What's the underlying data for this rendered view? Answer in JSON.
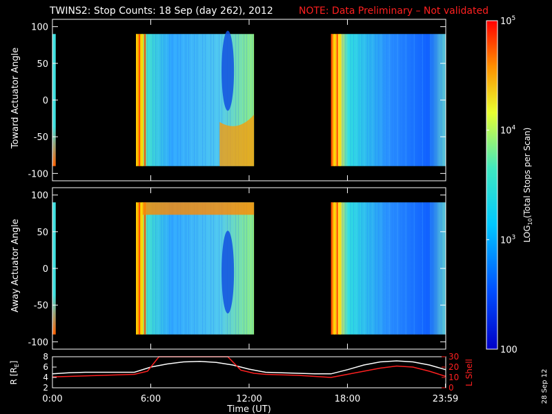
{
  "header": {
    "title": "TWINS2: Stop Counts: 18 Sep (day 262), 2012",
    "note": "NOTE: Data Preliminary – Not validated",
    "note_color": "#ff2020"
  },
  "side_stamp": "28 Sep 12",
  "colors": {
    "axis": "#ffffff",
    "background": "#000000",
    "lshell": "#ff2020",
    "radius": "#ffffff"
  },
  "chart_data": [
    {
      "type": "heatmap",
      "panel": "toward",
      "ylabel": "Toward Actuator Angle",
      "ylim": [
        -110,
        110
      ],
      "yticks": [
        "100",
        "50",
        "0",
        "-50",
        "-100"
      ],
      "ytick_values": [
        100,
        50,
        0,
        -50,
        -100
      ],
      "xlim": [
        0,
        24
      ],
      "data_coverage_hours": [
        [
          0,
          0.2
        ],
        [
          5.1,
          12.3
        ],
        [
          17.0,
          24.0
        ]
      ],
      "angle_range": [
        -90,
        90
      ],
      "grid": false
    },
    {
      "type": "heatmap",
      "panel": "away",
      "ylabel": "Away Actuator Angle",
      "ylim": [
        -110,
        110
      ],
      "yticks": [
        "100",
        "50",
        "0",
        "-50",
        "-100"
      ],
      "ytick_values": [
        100,
        50,
        0,
        -50,
        -100
      ],
      "xlim": [
        0,
        24
      ],
      "data_coverage_hours": [
        [
          0,
          0.2
        ],
        [
          5.1,
          12.3
        ],
        [
          17.0,
          24.0
        ]
      ],
      "angle_range": [
        -90,
        90
      ],
      "grid": false
    },
    {
      "type": "line",
      "panel": "orbit",
      "ylabel_left": "R [R",
      "ylabel_left_sub": "E",
      "ylabel_left_end": "]",
      "ylabel_right": "L Shell",
      "ylim_left": [
        2,
        8
      ],
      "yticks_left": [
        "8",
        "6",
        "4",
        "2"
      ],
      "ytick_values_left": [
        8,
        6,
        4,
        2
      ],
      "ylim_right": [
        0,
        30
      ],
      "yticks_right": [
        "30",
        "20",
        "10",
        "0"
      ],
      "ytick_values_right": [
        30,
        20,
        10,
        0
      ],
      "xlabel": "Time (UT)",
      "xlim": [
        0,
        24
      ],
      "xticks": [
        "0:00",
        "6:00",
        "12:00",
        "18:00",
        "23:59"
      ],
      "xtick_values": [
        0,
        6,
        12,
        18,
        23.98
      ],
      "series": [
        {
          "axis": "left",
          "x": [
            0,
            1,
            2,
            3,
            4,
            5,
            6,
            7,
            8,
            9,
            10,
            11,
            12,
            13,
            14,
            15,
            16,
            17,
            18,
            19,
            20,
            21,
            22,
            23,
            24
          ],
          "y": [
            4.7,
            4.9,
            5.0,
            5.0,
            5.0,
            5.0,
            6.0,
            6.6,
            7.0,
            7.1,
            6.9,
            6.4,
            5.6,
            5.0,
            4.9,
            4.8,
            4.7,
            4.7,
            5.5,
            6.4,
            7.0,
            7.2,
            7.0,
            6.4,
            5.5
          ]
        },
        {
          "axis": "right",
          "x": [
            0,
            1,
            2,
            3,
            4,
            5,
            5.8,
            6.5,
            10.7,
            11.5,
            12.3,
            13,
            14,
            15,
            16,
            17,
            18,
            19,
            20,
            21,
            22,
            23,
            24
          ],
          "y": [
            10.5,
            11,
            11.5,
            12,
            12.5,
            13,
            16,
            30,
            30,
            17,
            14,
            13,
            12.5,
            12,
            11,
            10,
            13,
            16,
            19,
            21,
            20,
            16,
            11
          ]
        }
      ]
    }
  ],
  "colorbar": {
    "label_log": "LOG",
    "label_sub": "10",
    "label_rest": "(Total Stops per Scan)",
    "ticks": [
      {
        "base": "10",
        "exp": "5",
        "value": 100000
      },
      {
        "base": "10",
        "exp": "4",
        "value": 10000
      },
      {
        "base": "10",
        "exp": "3",
        "value": 1000
      },
      {
        "base": "100",
        "exp": "",
        "value": 100
      }
    ],
    "range": [
      100,
      100000
    ]
  }
}
